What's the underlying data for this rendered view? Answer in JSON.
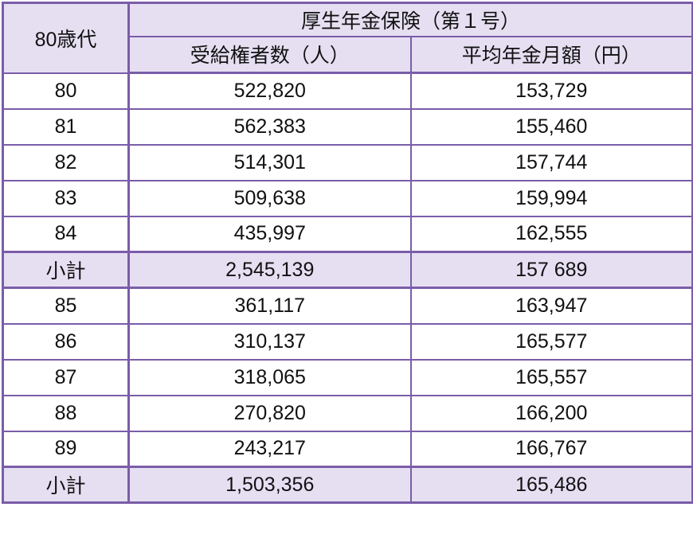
{
  "colors": {
    "border": "#7a5da8",
    "header_bg": "#e6dff2",
    "row_bg": "#ffffff",
    "text": "#111111"
  },
  "chart_data": {
    "type": "table",
    "title": "厚生年金保険（第１号）",
    "row_header_label": "80歳代",
    "columns": [
      "受給権者数（人）",
      "平均年金月額（円）"
    ],
    "rows": [
      {
        "age": "80",
        "recipients": "522,820",
        "avg": "153,729",
        "subtotal": false
      },
      {
        "age": "81",
        "recipients": "562,383",
        "avg": "155,460",
        "subtotal": false
      },
      {
        "age": "82",
        "recipients": "514,301",
        "avg": "157,744",
        "subtotal": false
      },
      {
        "age": "83",
        "recipients": "509,638",
        "avg": "159,994",
        "subtotal": false
      },
      {
        "age": "84",
        "recipients": "435,997",
        "avg": "162,555",
        "subtotal": false
      },
      {
        "age": "小計",
        "recipients": "2,545,139",
        "avg": "157 689",
        "subtotal": true
      },
      {
        "age": "85",
        "recipients": "361,117",
        "avg": "163,947",
        "subtotal": false
      },
      {
        "age": "86",
        "recipients": "310,137",
        "avg": "165,577",
        "subtotal": false
      },
      {
        "age": "87",
        "recipients": "318,065",
        "avg": "165,557",
        "subtotal": false
      },
      {
        "age": "88",
        "recipients": "270,820",
        "avg": "166,200",
        "subtotal": false
      },
      {
        "age": "89",
        "recipients": "243,217",
        "avg": "166,767",
        "subtotal": false
      },
      {
        "age": "小計",
        "recipients": "1,503,356",
        "avg": "165,486",
        "subtotal": true
      }
    ]
  }
}
